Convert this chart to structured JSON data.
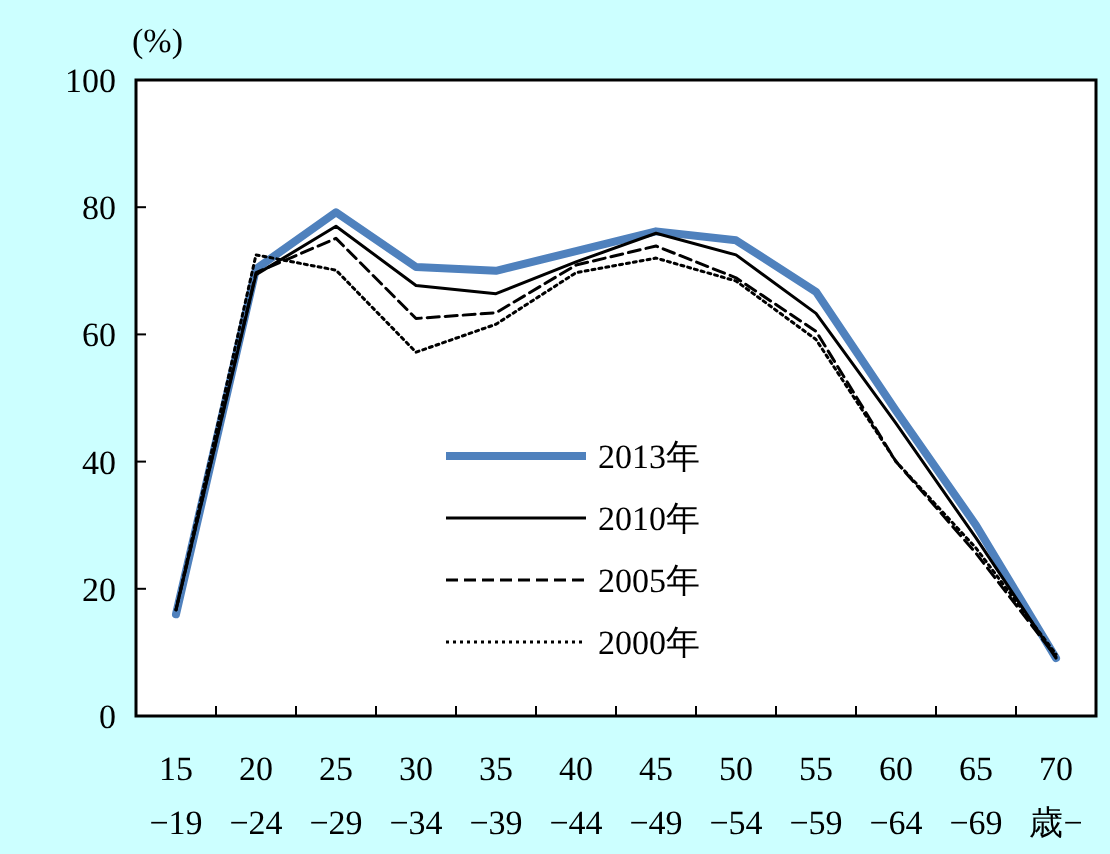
{
  "chart_data": {
    "type": "line",
    "ylabel": "(%)",
    "categories": [
      "15\n−19",
      "20\n−24",
      "25\n−29",
      "30\n−34",
      "35\n−39",
      "40\n−44",
      "45\n−49",
      "50\n−54",
      "55\n−59",
      "60\n−64",
      "65\n−69",
      "70\n歳−"
    ],
    "ylim": [
      0,
      100
    ],
    "yticks": [
      0,
      20,
      40,
      60,
      80,
      100
    ],
    "grid": false,
    "legend": "bottom",
    "marker": "none",
    "series": [
      {
        "name": "2013年",
        "color": "#4f81bd",
        "line_style": "solid",
        "values": [
          16.0,
          70.3,
          79.2,
          70.6,
          70.0,
          73.1,
          76.2,
          74.8,
          66.7,
          48.0,
          30.0,
          9.1
        ]
      },
      {
        "name": "2010年",
        "color": "#000000",
        "line_style": "solid",
        "values": [
          16.7,
          69.4,
          77.0,
          67.7,
          66.4,
          71.4,
          75.9,
          72.5,
          63.3,
          46.0,
          28.0,
          9.1
        ]
      },
      {
        "name": "2005年",
        "color": "#000000",
        "line_style": "dashed",
        "values": [
          16.7,
          69.7,
          75.1,
          62.5,
          63.4,
          70.9,
          73.9,
          68.9,
          60.5,
          40.0,
          25.6,
          9.3
        ]
      },
      {
        "name": "2000年",
        "color": "#000000",
        "line_style": "dotted",
        "values": [
          16.7,
          72.5,
          70.1,
          57.2,
          61.6,
          69.7,
          72.0,
          68.4,
          59.2,
          40.0,
          26.4,
          9.7
        ]
      }
    ]
  }
}
